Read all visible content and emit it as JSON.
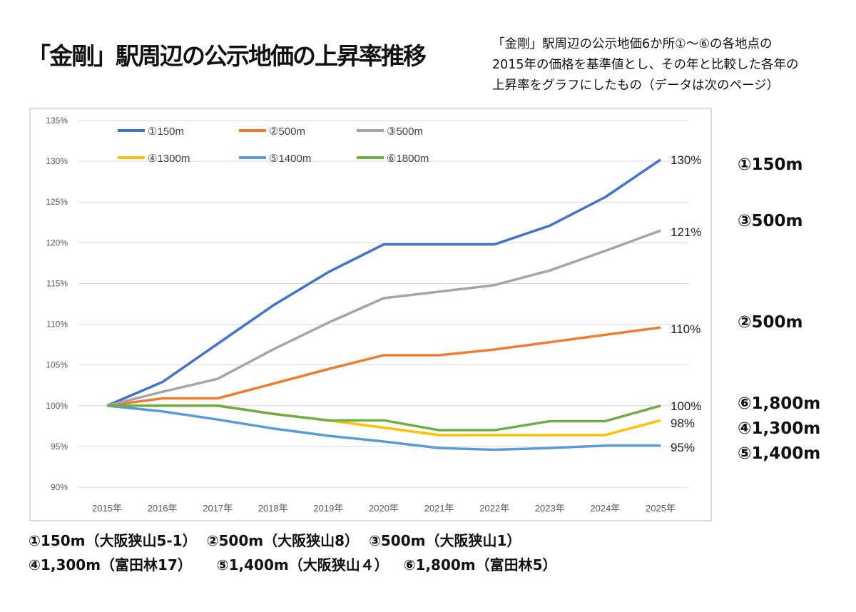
{
  "title": "「金剛」駅周辺の公示地価の上昇率推移",
  "subtitle": [
    "「金剛」駅周辺の公示地価6か所①～⑥の各地点の",
    "2015年の価格を基準値とし、その年と比較した各年の",
    "上昇率をグラフにしたもの（データは次のページ）"
  ],
  "right_labels": [
    "①150m",
    "③500m",
    "②500m",
    "⑥1,800m",
    "④1,300m",
    "⑤1,400m"
  ],
  "footer": [
    "①150m（大阪狭山5-1）  ②500m（大阪狭山8）  ③500m（大阪狭山1）",
    "④1,300m（富田林17）     ⑤1,400m（大阪狭山４）   ⑥1,800m（富田林5）"
  ],
  "chart_data": {
    "type": "line",
    "categories": [
      "2015年",
      "2016年",
      "2017年",
      "2018年",
      "2019年",
      "2020年",
      "2021年",
      "2022年",
      "2023年",
      "2024年",
      "2025年"
    ],
    "ylim": [
      90,
      135
    ],
    "yticks": [
      "90%",
      "95%",
      "100%",
      "105%",
      "110%",
      "115%",
      "120%",
      "125%",
      "130%",
      "135%"
    ],
    "grid": true,
    "legend_position": "top-left",
    "series": [
      {
        "name": "①150m",
        "color": "#4472C4",
        "values": [
          100,
          102.9,
          107.6,
          112.3,
          116.4,
          119.8,
          119.8,
          119.8,
          122.1,
          125.6,
          130.2
        ],
        "end_label": "130%"
      },
      {
        "name": "②500m",
        "color": "#ED7D31",
        "values": [
          100,
          100.9,
          100.9,
          102.7,
          104.5,
          106.2,
          106.2,
          106.9,
          107.8,
          108.7,
          109.6
        ],
        "end_label": "110%"
      },
      {
        "name": "③500m",
        "color": "#A5A5A5",
        "values": [
          100,
          101.7,
          103.3,
          106.9,
          110.2,
          113.2,
          114.0,
          114.8,
          116.6,
          119.0,
          121.5
        ],
        "end_label": "121%"
      },
      {
        "name": "④1300m",
        "color": "#FFC000",
        "values": [
          100,
          100,
          100,
          99.0,
          98.2,
          97.3,
          96.4,
          96.4,
          96.4,
          96.4,
          98.2
        ],
        "end_label": "98%"
      },
      {
        "name": "⑤1400m",
        "color": "#5B9BD5",
        "values": [
          100,
          99.3,
          98.3,
          97.2,
          96.3,
          95.6,
          94.8,
          94.6,
          94.8,
          95.1,
          95.1
        ],
        "end_label": "95%"
      },
      {
        "name": "⑥1800m",
        "color": "#70AD47",
        "values": [
          100,
          100,
          100,
          99.0,
          98.2,
          98.2,
          97.0,
          97.0,
          98.1,
          98.1,
          100
        ],
        "end_label": "100%"
      }
    ]
  }
}
